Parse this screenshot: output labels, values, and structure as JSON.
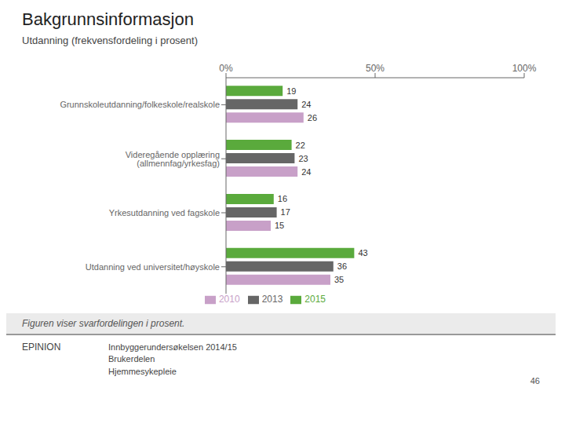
{
  "chart_data": {
    "type": "bar",
    "orientation": "horizontal",
    "title": "Bakgrunnsinformasjon",
    "subtitle": "Utdanning (frekvensfordeling i prosent)",
    "categories": [
      "Grunnskoleutdanning/folkeskole/realskole",
      "Videregående opplæring (allmennfag/yrkesfag)",
      "Yrkesutdanning ved fagskole",
      "Utdanning ved universitet/høyskole"
    ],
    "series": [
      {
        "name": "2015",
        "color": "#5aaa3c",
        "values": [
          19,
          22,
          16,
          43
        ]
      },
      {
        "name": "2013",
        "color": "#666666",
        "values": [
          24,
          23,
          17,
          36
        ]
      },
      {
        "name": "2010",
        "color": "#c8a0c8",
        "values": [
          26,
          24,
          15,
          35
        ]
      }
    ],
    "xlim": [
      0,
      100
    ],
    "xticks": [
      {
        "value": 0,
        "label": "0%"
      },
      {
        "value": 50,
        "label": "50%"
      },
      {
        "value": 100,
        "label": "100%"
      }
    ],
    "data_labels": true,
    "grid": false,
    "legend": "bottom",
    "annotations": [
      "Figuren viser svarfordelingen i prosent.",
      "EPINION",
      "Innbyggerundersøkelsen 2014/15\nBrukerdelen\nHjemmesykepleie",
      "46"
    ]
  }
}
